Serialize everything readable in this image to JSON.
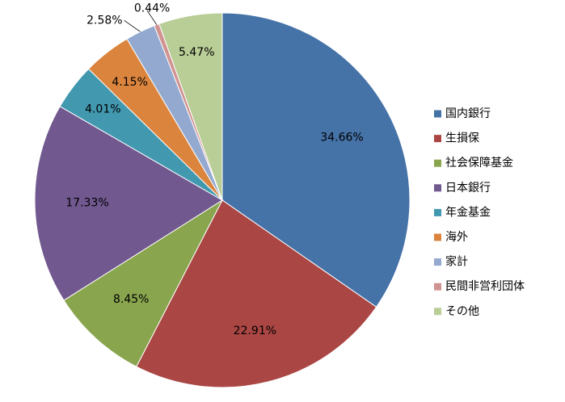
{
  "chart_data": {
    "type": "pie",
    "categories": [
      "国内銀行",
      "生損保",
      "社会保障基金",
      "日本銀行",
      "年金基金",
      "海外",
      "家計",
      "民間非営利団体",
      "その他"
    ],
    "values": [
      34.66,
      22.91,
      8.45,
      17.33,
      4.01,
      4.15,
      2.58,
      0.44,
      5.47
    ],
    "value_labels": [
      "34.66%",
      "22.91%",
      "8.45%",
      "17.33%",
      "4.01%",
      "4.15%",
      "2.58%",
      "0.44%",
      "5.47%"
    ],
    "colors": [
      "#4572a7",
      "#aa4643",
      "#89a54e",
      "#71588f",
      "#4198af",
      "#db843d",
      "#93a9cf",
      "#d19392",
      "#b9cd96"
    ],
    "legend": "right"
  }
}
